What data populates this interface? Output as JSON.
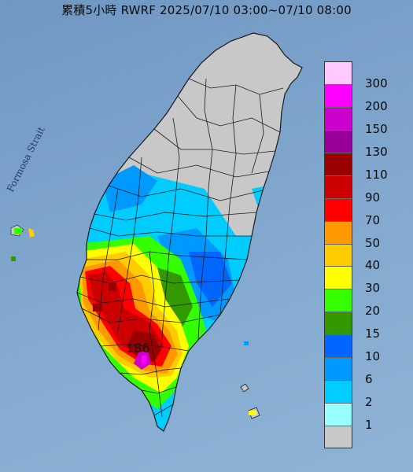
{
  "title": "累積5小時 RWRF 2025/07/10 03:00~07/10 08:00",
  "sea_label": "Formosa Strait",
  "max_value_label": "186",
  "colors": {
    "land": "#c8c8c8",
    "border": "#1a1a1a"
  },
  "legend": [
    {
      "value": "300",
      "color": "#ffc8ff"
    },
    {
      "value": "200",
      "color": "#ff00ff"
    },
    {
      "value": "150",
      "color": "#cc00cc"
    },
    {
      "value": "130",
      "color": "#990099"
    },
    {
      "value": "110",
      "color": "#990000"
    },
    {
      "value": "90",
      "color": "#cc0000"
    },
    {
      "value": "70",
      "color": "#ff0000"
    },
    {
      "value": "50",
      "color": "#ff9900"
    },
    {
      "value": "40",
      "color": "#ffcc00"
    },
    {
      "value": "30",
      "color": "#ffff00"
    },
    {
      "value": "20",
      "color": "#33ff00"
    },
    {
      "value": "15",
      "color": "#339900"
    },
    {
      "value": "10",
      "color": "#0066ff"
    },
    {
      "value": "6",
      "color": "#0099ff"
    },
    {
      "value": "2",
      "color": "#00ccff"
    },
    {
      "value": "1",
      "color": "#99ffff"
    },
    {
      "value": "",
      "color": "#c8c8c8"
    }
  ]
}
